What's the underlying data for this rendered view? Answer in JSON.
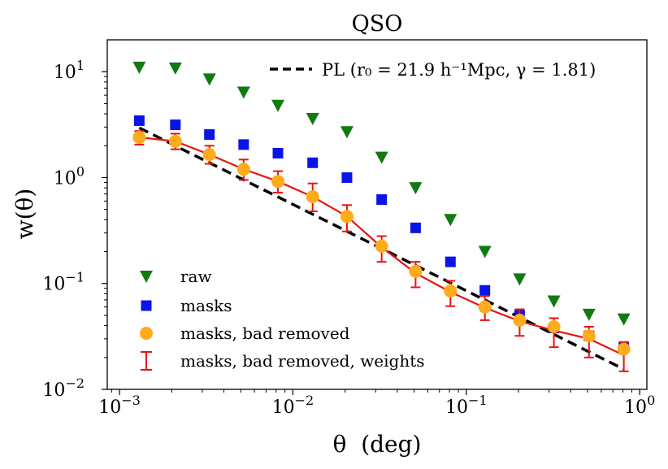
{
  "chart_data": {
    "type": "scatter",
    "title": "QSO",
    "xlabel": "θ  (deg)",
    "ylabel": "w(θ)",
    "xscale": "log",
    "yscale": "log",
    "xlim": [
      0.00085,
      1.1
    ],
    "ylim": [
      0.01,
      20
    ],
    "x_ticks": [
      {
        "value": 0.001,
        "base": "10",
        "exp": "−3"
      },
      {
        "value": 0.01,
        "base": "10",
        "exp": "−2"
      },
      {
        "value": 0.1,
        "base": "10",
        "exp": "−1"
      },
      {
        "value": 1,
        "base": "10",
        "exp": "0"
      }
    ],
    "y_ticks": [
      {
        "value": 0.01,
        "base": "10",
        "exp": "−2"
      },
      {
        "value": 0.1,
        "base": "10",
        "exp": "−1"
      },
      {
        "value": 1,
        "base": "10",
        "exp": "0"
      },
      {
        "value": 10,
        "base": "10",
        "exp": "1"
      }
    ],
    "x": [
      0.0013,
      0.0021,
      0.0033,
      0.0052,
      0.0082,
      0.013,
      0.0205,
      0.0325,
      0.051,
      0.081,
      0.128,
      0.203,
      0.32,
      0.51,
      0.81
    ],
    "series": [
      {
        "name": "raw",
        "marker": "triangle-down",
        "color": "#117a11",
        "values": [
          11.0,
          10.8,
          8.5,
          6.4,
          4.8,
          3.6,
          2.7,
          1.55,
          0.8,
          0.4,
          0.2,
          0.11,
          0.068,
          0.051,
          0.046
        ]
      },
      {
        "name": "masks",
        "marker": "square",
        "color": "#0a14e8",
        "values": [
          3.45,
          3.15,
          2.55,
          2.05,
          1.7,
          1.38,
          1.0,
          0.62,
          0.335,
          0.16,
          0.086,
          0.05,
          0.038,
          0.032,
          0.025
        ]
      },
      {
        "name": "masks, bad removed",
        "marker": "circle",
        "color": "#ffab1c",
        "values": [
          2.4,
          2.2,
          1.65,
          1.2,
          0.92,
          0.66,
          0.43,
          0.225,
          0.13,
          0.085,
          0.06,
          0.045,
          0.039,
          0.032,
          0.024
        ]
      },
      {
        "name": "masks, bad removed, weights",
        "marker": "errorbar-line",
        "color": "#e8140e",
        "values": [
          2.4,
          2.2,
          1.65,
          1.2,
          0.92,
          0.66,
          0.43,
          0.22,
          0.125,
          0.083,
          0.059,
          0.044,
          0.036,
          0.03,
          0.021
        ],
        "err_low": [
          2.05,
          1.85,
          1.35,
          0.95,
          0.72,
          0.48,
          0.31,
          0.16,
          0.092,
          0.061,
          0.045,
          0.032,
          0.025,
          0.02,
          0.0148
        ],
        "err_high": [
          2.75,
          2.6,
          2.0,
          1.48,
          1.15,
          0.88,
          0.55,
          0.28,
          0.16,
          0.106,
          0.076,
          0.057,
          0.047,
          0.039,
          0.028
        ]
      }
    ],
    "power_law": {
      "label": "PL (r₀ = 21.9 h⁻¹Mpc, γ = 1.81)",
      "gamma": 1.81,
      "x_range": [
        0.0013,
        0.81
      ],
      "y_range": [
        2.95,
        0.0155
      ],
      "color": "#000000",
      "style": "dashed"
    },
    "legend": {
      "lower": "lower-left",
      "upper": "top-right"
    }
  }
}
